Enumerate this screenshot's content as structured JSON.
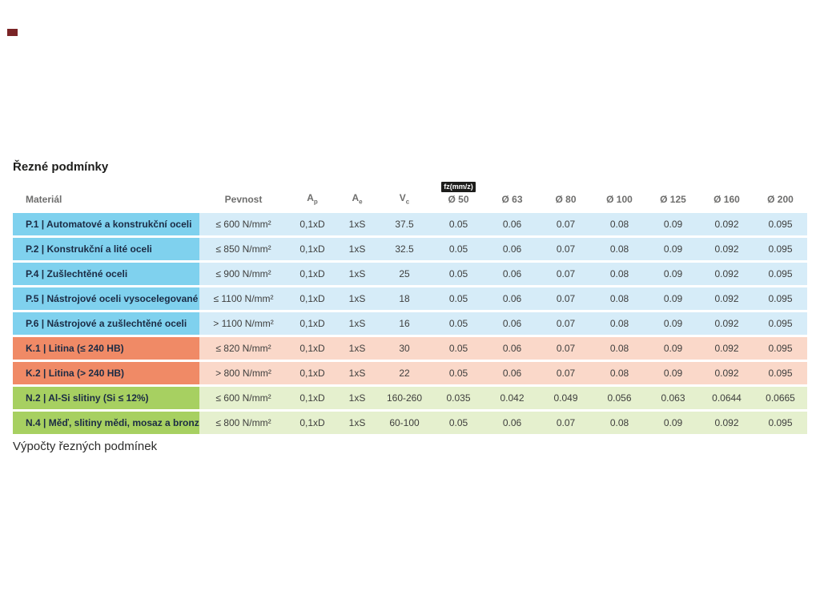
{
  "page": {
    "title": "Řezné podmínky",
    "footer_text": "Výpočty řezných podmínek"
  },
  "colors": {
    "blue_dark": "#7fd1ee",
    "blue_light": "#d6ecf8",
    "salmon_dark": "#f08a66",
    "salmon_light": "#fad8c9",
    "green_dark": "#a7d061",
    "green_light": "#e5f0ce",
    "badge_bg": "#1d1d1b",
    "header_text": "#6e6e6d"
  },
  "table": {
    "headers": {
      "material": "Materiál",
      "pevnost": "Pevnost",
      "ap_base": "A",
      "ap_sub": "p",
      "ae_base": "A",
      "ae_sub": "e",
      "vc_base": "V",
      "vc_sub": "c",
      "fz_badge": "fz(mm/z)",
      "diameters": [
        "Ø 50",
        "Ø 63",
        "Ø 80",
        "Ø 100",
        "Ø 125",
        "Ø 160",
        "Ø 200"
      ]
    },
    "rows": [
      {
        "group": "blue",
        "material": "P.1 | Automatové a konstrukční oceli",
        "pevnost": "≤ 600 N/mm²",
        "ap": "0,1xD",
        "ae": "1xS",
        "vc": "37.5",
        "fz": [
          "0.05",
          "0.06",
          "0.07",
          "0.08",
          "0.09",
          "0.092",
          "0.095"
        ]
      },
      {
        "group": "blue",
        "material": "P.2 | Konstrukční a lité oceli",
        "pevnost": "≤ 850 N/mm²",
        "ap": "0,1xD",
        "ae": "1xS",
        "vc": "32.5",
        "fz": [
          "0.05",
          "0.06",
          "0.07",
          "0.08",
          "0.09",
          "0.092",
          "0.095"
        ]
      },
      {
        "group": "blue",
        "material": "P.4 | Zušlechtěné oceli",
        "pevnost": "≤ 900 N/mm²",
        "ap": "0,1xD",
        "ae": "1xS",
        "vc": "25",
        "fz": [
          "0.05",
          "0.06",
          "0.07",
          "0.08",
          "0.09",
          "0.092",
          "0.095"
        ]
      },
      {
        "group": "blue",
        "material": "P.5 | Nástrojové oceli vysocelegované",
        "pevnost": "≤ 1100 N/mm²",
        "ap": "0,1xD",
        "ae": "1xS",
        "vc": "18",
        "fz": [
          "0.05",
          "0.06",
          "0.07",
          "0.08",
          "0.09",
          "0.092",
          "0.095"
        ]
      },
      {
        "group": "blue",
        "material": "P.6 | Nástrojové a zušlechtěné oceli",
        "pevnost": "> 1100 N/mm²",
        "ap": "0,1xD",
        "ae": "1xS",
        "vc": "16",
        "fz": [
          "0.05",
          "0.06",
          "0.07",
          "0.08",
          "0.09",
          "0.092",
          "0.095"
        ]
      },
      {
        "group": "salmon",
        "material": "K.1 | Litina (≤ 240 HB)",
        "pevnost": "≤ 820 N/mm²",
        "ap": "0,1xD",
        "ae": "1xS",
        "vc": "30",
        "fz": [
          "0.05",
          "0.06",
          "0.07",
          "0.08",
          "0.09",
          "0.092",
          "0.095"
        ]
      },
      {
        "group": "salmon",
        "material": "K.2 | Litina (> 240 HB)",
        "pevnost": "> 800 N/mm²",
        "ap": "0,1xD",
        "ae": "1xS",
        "vc": "22",
        "fz": [
          "0.05",
          "0.06",
          "0.07",
          "0.08",
          "0.09",
          "0.092",
          "0.095"
        ]
      },
      {
        "group": "green",
        "material": "N.2 | Al-Si slitiny (Si ≤ 12%)",
        "pevnost": "≤ 600 N/mm²",
        "ap": "0,1xD",
        "ae": "1xS",
        "vc": "160-260",
        "fz": [
          "0.035",
          "0.042",
          "0.049",
          "0.056",
          "0.063",
          "0.0644",
          "0.0665"
        ]
      },
      {
        "group": "green",
        "material": "N.4 | Měď, slitiny mědi, mosaz a bronz",
        "pevnost": "≤ 800 N/mm²",
        "ap": "0,1xD",
        "ae": "1xS",
        "vc": "60-100",
        "fz": [
          "0.05",
          "0.06",
          "0.07",
          "0.08",
          "0.09",
          "0.092",
          "0.095"
        ]
      }
    ]
  }
}
